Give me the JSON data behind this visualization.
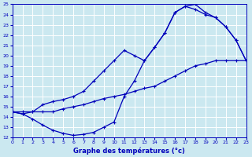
{
  "title": "Graphe des températures (°c)",
  "xlim": [
    0,
    23
  ],
  "ylim": [
    12,
    25
  ],
  "xticks": [
    0,
    1,
    2,
    3,
    4,
    5,
    6,
    7,
    8,
    9,
    10,
    11,
    12,
    13,
    14,
    15,
    16,
    17,
    18,
    19,
    20,
    21,
    22,
    23
  ],
  "yticks": [
    12,
    13,
    14,
    15,
    16,
    17,
    18,
    19,
    20,
    21,
    22,
    23,
    24,
    25
  ],
  "bg_color": "#cbe8f0",
  "grid_color": "#b0d8e8",
  "line_color": "#0000bb",
  "line1_x": [
    0,
    1,
    2,
    3,
    4,
    5,
    6,
    7,
    8,
    9,
    10,
    11,
    12,
    13,
    14,
    15,
    16,
    17,
    18,
    19,
    20,
    21,
    22,
    23
  ],
  "line1_y": [
    14.5,
    14.3,
    13.8,
    13.2,
    12.7,
    12.4,
    12.2,
    12.3,
    12.5,
    13.0,
    13.5,
    16.0,
    17.5,
    19.5,
    20.8,
    22.2,
    24.2,
    24.8,
    25.0,
    24.2,
    23.7,
    22.8,
    21.5,
    19.5
  ],
  "line2_x": [
    0,
    1,
    2,
    3,
    4,
    5,
    6,
    7,
    8,
    9,
    10,
    11,
    12,
    13,
    14,
    15,
    16,
    17,
    18,
    19,
    20,
    21,
    22,
    23
  ],
  "line2_y": [
    14.5,
    14.3,
    14.5,
    15.2,
    15.5,
    15.7,
    16.0,
    16.5,
    17.5,
    18.5,
    19.5,
    20.5,
    20.0,
    19.5,
    20.8,
    22.2,
    24.2,
    24.8,
    24.5,
    24.0,
    23.7,
    22.8,
    21.5,
    19.5
  ],
  "line3_x": [
    0,
    1,
    2,
    3,
    4,
    5,
    6,
    7,
    8,
    9,
    10,
    11,
    12,
    13,
    14,
    15,
    16,
    17,
    18,
    19,
    20,
    21,
    22,
    23
  ],
  "line3_y": [
    14.5,
    14.5,
    14.5,
    14.5,
    14.5,
    14.8,
    15.0,
    15.2,
    15.5,
    15.8,
    16.0,
    16.2,
    16.5,
    16.8,
    17.0,
    17.5,
    18.0,
    18.5,
    19.0,
    19.2,
    19.5,
    19.5,
    19.5,
    19.5
  ]
}
